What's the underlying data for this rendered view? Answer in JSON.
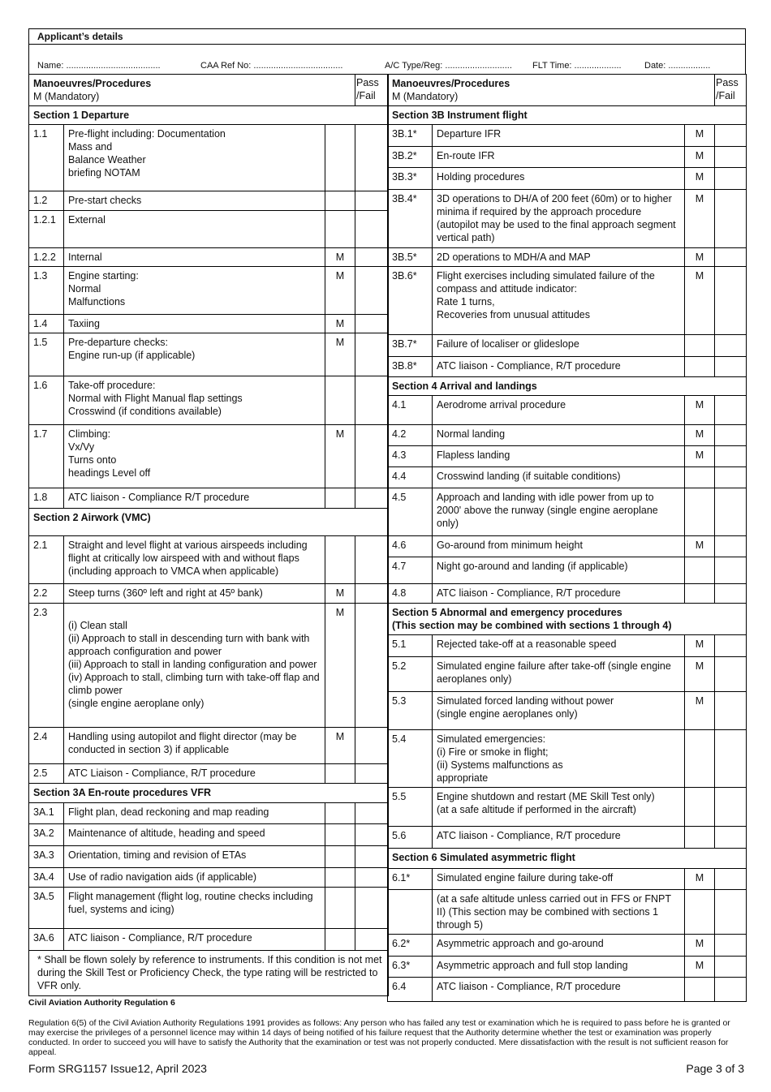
{
  "applicant": {
    "title": "Applicant’s details",
    "name": "Name: ......................................",
    "caa": "CAA Ref No: ....................................",
    "ac": "A/C Type/Reg: ...........................",
    "flt": "FLT Time: ...................",
    "date": "Date: ................."
  },
  "column_header": {
    "title": "Manoeuvres/Procedures",
    "subtitle": "M (Mandatory)",
    "pass": "Pass\n/Fail"
  },
  "left": [
    {
      "sec": "Section 1 Departure"
    },
    {
      "num": "1.1",
      "text": "Pre-flight including:  Documentation\n                              Mass and\n                              Balance Weather\n                              briefing NOTAM",
      "m": ""
    },
    {
      "num": "1.2",
      "text": "Pre-start checks",
      "m": ""
    },
    {
      "num": "1.2.1",
      "text": "External",
      "m": ""
    },
    {
      "num": "1.2.2",
      "text": "Internal",
      "m": "M"
    },
    {
      "num": "1.3",
      "text": "Engine starting:\nNormal\nMalfunctions",
      "m": "M"
    },
    {
      "num": "1.4",
      "text": "Taxiing",
      "m": "M"
    },
    {
      "num": "1.5",
      "text": "Pre-departure checks:\nEngine run-up (if applicable)",
      "m": "M"
    },
    {
      "num": "1.6",
      "text": "Take-off procedure:\nNormal with Flight Manual flap settings\nCrosswind (if conditions available)",
      "m": ""
    },
    {
      "num": "1.7",
      "text": "Climbing:\nVx/Vy\nTurns onto\nheadings Level off",
      "m": "M"
    },
    {
      "num": "1.8",
      "text": "ATC liaison - Compliance R/T procedure",
      "m": ""
    },
    {
      "sec": "Section 2 Airwork (VMC)"
    },
    {
      "num": "2.1",
      "text": "Straight and level flight at various airspeeds including flight at critically low airspeed with and without flaps (including approach to VMCA when applicable)",
      "m": ""
    },
    {
      "num": "2.2",
      "text": "Steep turns (360º left and right at 45º bank)",
      "m": "M"
    },
    {
      "num": "2.3",
      "text": "\n(i) Clean stall\n(ii) Approach to stall in descending turn with bank with approach configuration and power\n(iii) Approach to stall in landing configuration and power\n(iv) Approach to stall, climbing turn with take-off flap and climb power\n(single engine aeroplane only)",
      "m": "M"
    },
    {
      "num": "2.4",
      "text": "Handling using autopilot and flight director (may be conducted in section 3) if applicable",
      "m": "M"
    },
    {
      "num": "2.5",
      "text": "ATC Liaison - Compliance, R/T procedure",
      "m": ""
    },
    {
      "sec": "Section 3A En-route procedures VFR"
    },
    {
      "num": "3A.1",
      "text": "Flight plan, dead reckoning and map reading",
      "m": ""
    },
    {
      "num": "3A.2",
      "text": "Maintenance of altitude, heading and speed",
      "m": ""
    },
    {
      "num": "3A.3",
      "text": "Orientation, timing and revision of ETAs",
      "m": ""
    },
    {
      "num": "3A.4",
      "text": "Use of radio navigation aids (if applicable)",
      "m": ""
    },
    {
      "num": "3A.5",
      "text": "Flight management (flight log, routine checks including fuel, systems and icing)",
      "m": ""
    },
    {
      "num": "3A.6",
      "text": "ATC liaison - Compliance, R/T procedure",
      "m": ""
    },
    {
      "note": "* Shall be flown solely by reference to instruments. If this condition is not met during the Skill Test or Proficiency Check, the type rating will be restricted to VFR only."
    }
  ],
  "right": [
    {
      "sec": "Section 3B Instrument flight"
    },
    {
      "num": "3B.1*",
      "text": "Departure IFR",
      "m": "M"
    },
    {
      "num": "3B.2*",
      "text": "En-route IFR",
      "m": "M"
    },
    {
      "num": "3B.3*",
      "text": "Holding procedures",
      "m": "M"
    },
    {
      "num": "3B.4*",
      "text": "3D operations to DH/A of 200 feet (60m) or to higher minima if required by the approach procedure (autopilot may be used to the final approach segment vertical path)",
      "m": "M"
    },
    {
      "num": "3B.5*",
      "text": "2D operations to MDH/A and MAP",
      "m": "M"
    },
    {
      "num": "3B.6*",
      "text": "Flight exercises including simulated failure of the compass and attitude indicator:\nRate 1 turns,\nRecoveries from unusual attitudes",
      "m": "M"
    },
    {
      "num": "3B.7*",
      "text": "Failure of localiser or glideslope",
      "m": ""
    },
    {
      "num": "3B.8*",
      "text": "ATC liaison - Compliance, R/T procedure",
      "m": ""
    },
    {
      "sec": "Section 4 Arrival and landings"
    },
    {
      "num": "4.1",
      "text": "Aerodrome arrival procedure",
      "m": "M"
    },
    {
      "num": "4.2",
      "text": "Normal landing",
      "m": "M"
    },
    {
      "num": "4.3",
      "text": "Flapless landing",
      "m": "M"
    },
    {
      "num": "4.4",
      "text": "Crosswind landing (if suitable conditions)",
      "m": ""
    },
    {
      "num": "4.5",
      "text": "Approach and landing with idle power from up to 2000' above the runway (single engine aeroplane only)",
      "m": ""
    },
    {
      "num": "4.6",
      "text": "Go-around from minimum height",
      "m": "M"
    },
    {
      "num": "4.7",
      "text": "Night go-around and landing (if applicable)",
      "m": ""
    },
    {
      "num": "4.8",
      "text": "ATC liaison - Compliance, R/T procedure",
      "m": ""
    },
    {
      "sec": "Section 5 Abnormal and emergency procedures\n          (This section may be combined with sections 1 through 4)"
    },
    {
      "num": "5.1",
      "text": "Rejected take-off at a reasonable speed",
      "m": "M"
    },
    {
      "num": "5.2",
      "text": "Simulated engine failure after take-off (single engine aeroplanes only)",
      "m": "M"
    },
    {
      "num": "5.3",
      "text": "Simulated forced landing without power\n(single engine aeroplanes only)",
      "m": "M"
    },
    {
      "num": "5.4",
      "text": "Simulated emergencies:\n(i) Fire or smoke in flight;\n(ii) Systems malfunctions as\n    appropriate",
      "m": ""
    },
    {
      "num": "5.5",
      "text": "Engine shutdown and restart (ME Skill Test only)\n(at a safe altitude if performed in the aircraft)",
      "m": ""
    },
    {
      "num": "5.6",
      "text": "ATC liaison - Compliance, R/T procedure",
      "m": ""
    },
    {
      "sec": "Section 6 Simulated asymmetric flight"
    },
    {
      "num": "6.1*",
      "text": "Simulated engine failure during take-off",
      "m": "M"
    },
    {
      "num": "",
      "text": "(at a safe altitude unless carried out in FFS or FNPT II) (This section may be combined with sections 1 through 5)",
      "m": ""
    },
    {
      "num": "6.2*",
      "text": "Asymmetric approach and go-around",
      "m": "M"
    },
    {
      "num": "6.3*",
      "text": "Asymmetric approach and full stop landing",
      "m": "M"
    },
    {
      "num": "6.4",
      "text": "ATC liaison - Compliance, R/T procedure",
      "m": ""
    }
  ],
  "regulation": {
    "title": "Civil Aviation Authority Regulation 6",
    "text": "Regulation 6(5) of the Civil Aviation Authority Regulations 1991 provides as follows: Any person who has failed any test or examination which he is required to pass before he is granted or may exercise the privileges of a personnel licence may within 14 days of being notified of his failure request that the Authority determine whether the test or examination was properly conducted. In order to succeed you will have to satisfy the Authority that the examination or test was not properly conducted. Mere dissatisfaction with the result is not sufficient reason for appeal."
  },
  "footer": {
    "form": "Form  SRG1157 Issue12, April 2023",
    "page": "Page 3 of 3"
  }
}
